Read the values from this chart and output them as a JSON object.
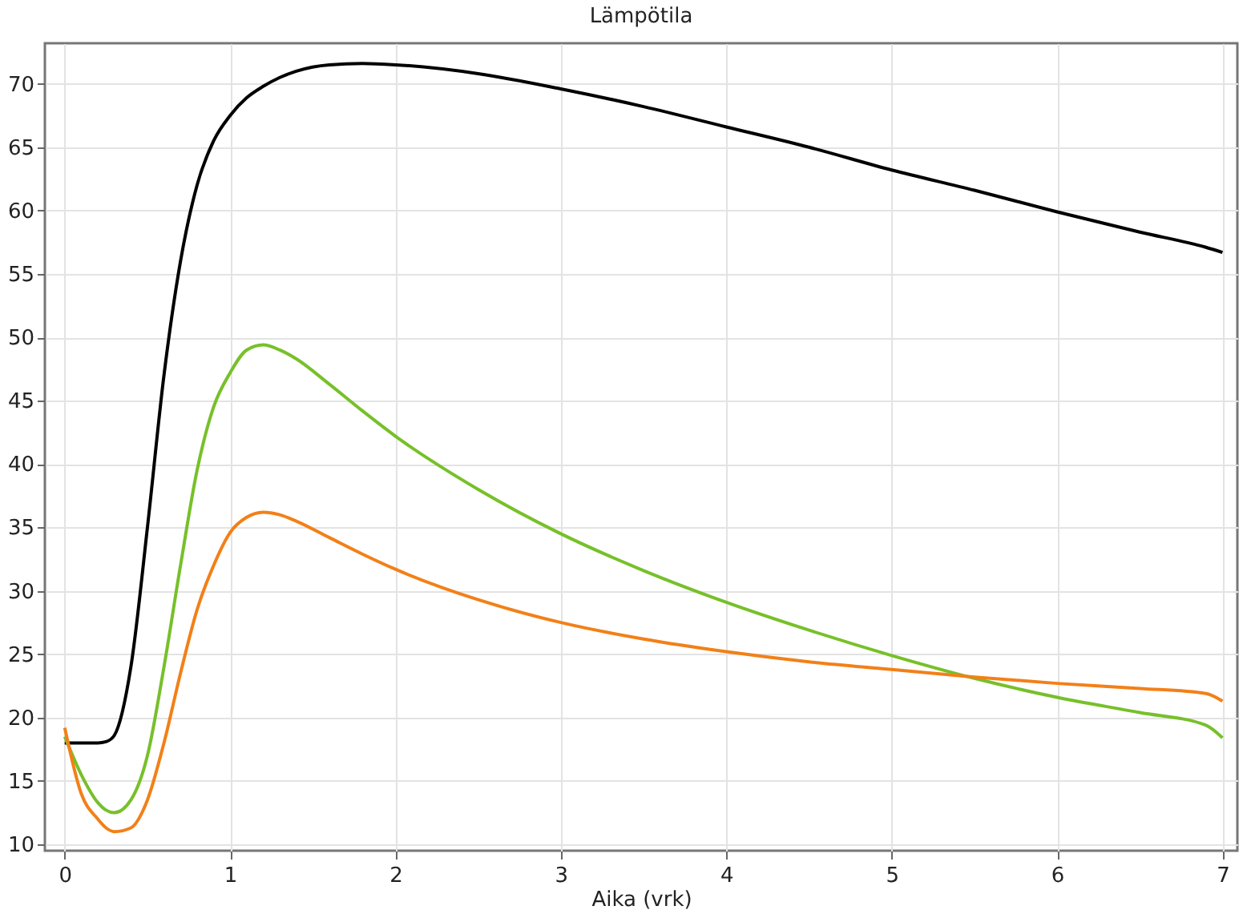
{
  "chart_data": {
    "type": "line",
    "title": "Lämpötila",
    "xlabel": "Aika (vrk)",
    "xlim": [
      -0.12,
      7.09
    ],
    "ylim": [
      9.5,
      73.2
    ],
    "xticks": [
      0,
      1,
      2,
      3,
      4,
      5,
      6,
      7
    ],
    "yticks": [
      10,
      15,
      20,
      25,
      30,
      35,
      40,
      45,
      50,
      55,
      60,
      65,
      70
    ],
    "grid": true,
    "legend": false,
    "line_style": "solid",
    "x": [
      0,
      0.1,
      0.2,
      0.25,
      0.3,
      0.4,
      0.5,
      0.6,
      0.7,
      0.8,
      0.9,
      1.0,
      1.1,
      1.2,
      1.3,
      1.4,
      1.6,
      1.8,
      2.0,
      2.5,
      3,
      3.5,
      4,
      4.5,
      5,
      5.5,
      6,
      6.5,
      6.9,
      7
    ],
    "series": [
      {
        "color": "#000000",
        "values": [
          18,
          18,
          18,
          18.1,
          18.6,
          24,
          35,
          47,
          56,
          62,
          65.5,
          67.5,
          68.9,
          69.8,
          70.5,
          71,
          71.5,
          71.6,
          71.5,
          70.8,
          69.6,
          68.2,
          66.6,
          65,
          63.2,
          61.6,
          59.9,
          58.3,
          57.1,
          56.7
        ]
      },
      {
        "color": "#77c02a",
        "values": [
          18.5,
          15.5,
          13.3,
          12.7,
          12.5,
          13.5,
          17,
          24,
          32,
          39.5,
          44.5,
          47.2,
          49,
          49.4,
          49,
          48.3,
          46.3,
          44.2,
          42.2,
          38,
          34.5,
          31.6,
          29.1,
          26.9,
          24.9,
          23.1,
          21.6,
          20.4,
          19.4,
          18.4
        ]
      },
      {
        "color": "#f28018",
        "values": [
          19.2,
          14,
          12,
          11.3,
          11,
          11.3,
          13.5,
          18,
          23.5,
          28.5,
          32,
          34.6,
          35.8,
          36.2,
          36,
          35.5,
          34.2,
          32.9,
          31.7,
          29.3,
          27.5,
          26.2,
          25.2,
          24.4,
          23.8,
          23.2,
          22.7,
          22.3,
          21.9,
          21.3
        ]
      }
    ]
  }
}
